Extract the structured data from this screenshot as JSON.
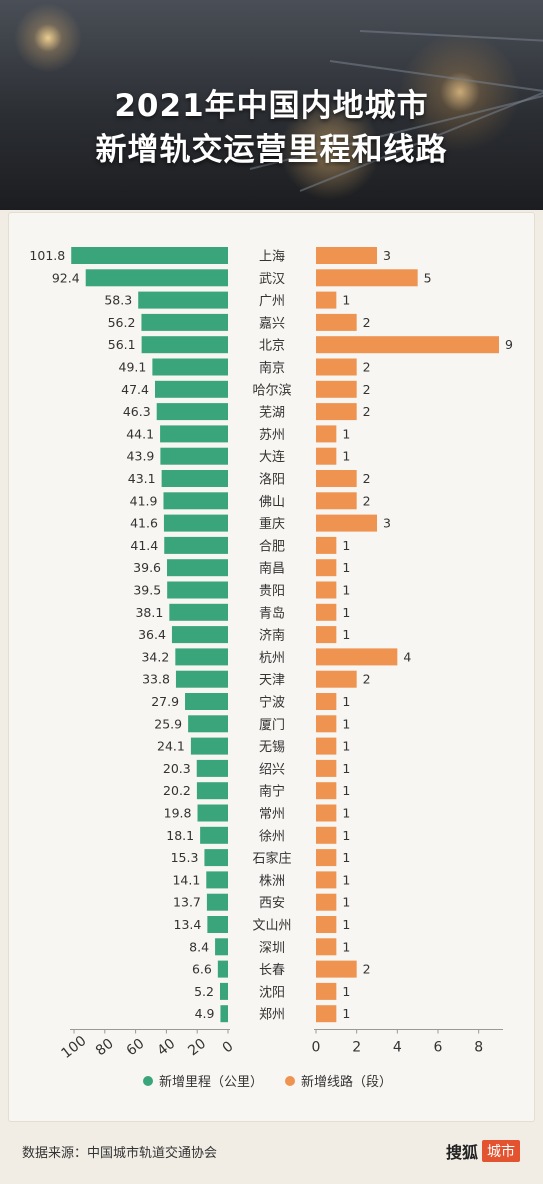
{
  "header": {
    "title_line1": "2021年中国内地城市",
    "title_line2": "新增轨交运营里程和线路"
  },
  "chart_data": {
    "type": "bar",
    "categories": [
      "上海",
      "武汉",
      "广州",
      "嘉兴",
      "北京",
      "南京",
      "哈尔滨",
      "芜湖",
      "苏州",
      "大连",
      "洛阳",
      "佛山",
      "重庆",
      "合肥",
      "南昌",
      "贵阳",
      "青岛",
      "济南",
      "杭州",
      "天津",
      "宁波",
      "厦门",
      "无锡",
      "绍兴",
      "南宁",
      "常州",
      "徐州",
      "石家庄",
      "株洲",
      "西安",
      "文山州",
      "深圳",
      "长春",
      "沈阳",
      "郑州"
    ],
    "series": [
      {
        "name": "新增里程（公里）",
        "color": "#3aa57a",
        "values": [
          101.8,
          92.4,
          58.3,
          56.2,
          56.1,
          49.1,
          47.4,
          46.3,
          44.1,
          43.9,
          43.1,
          41.9,
          41.6,
          41.4,
          39.6,
          39.5,
          38.1,
          36.4,
          34.2,
          33.8,
          27.9,
          25.9,
          24.1,
          20.3,
          20.2,
          19.8,
          18.1,
          15.3,
          14.1,
          13.7,
          13.4,
          8.4,
          6.6,
          5.2,
          4.9
        ],
        "axis_ticks": [
          "100",
          "80",
          "60",
          "40",
          "20",
          "0"
        ],
        "xlim": [
          0,
          100
        ]
      },
      {
        "name": "新增线路（段）",
        "color": "#ee9350",
        "values": [
          3,
          5,
          1,
          2,
          9,
          2,
          2,
          2,
          1,
          1,
          2,
          2,
          3,
          1,
          1,
          1,
          1,
          1,
          4,
          2,
          1,
          1,
          1,
          1,
          1,
          1,
          1,
          1,
          1,
          1,
          1,
          1,
          2,
          1,
          1
        ],
        "axis_ticks": [
          "0",
          "2",
          "4",
          "6",
          "8"
        ],
        "xlim": [
          0,
          9
        ]
      }
    ],
    "legend": "bottom",
    "grid": false
  },
  "footer": {
    "source": "数据来源：中国城市轨道交通协会",
    "logo_main": "搜狐",
    "logo_tag": "城市"
  }
}
